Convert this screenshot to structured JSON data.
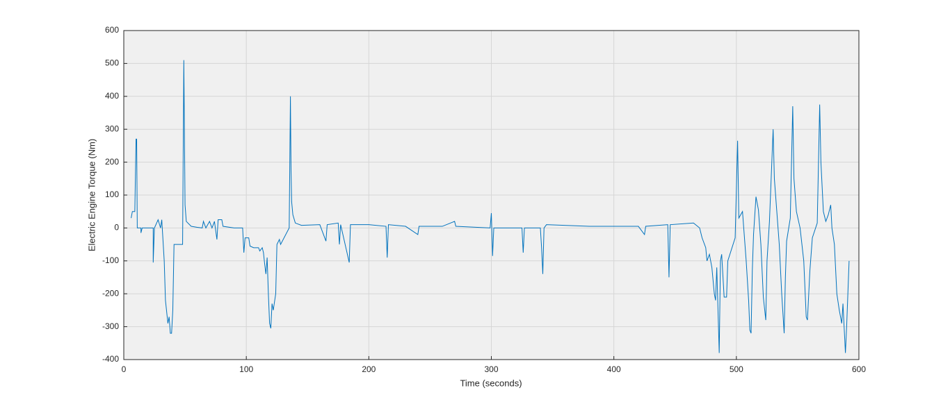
{
  "chart_data": {
    "type": "line",
    "xlabel": "Time (seconds)",
    "ylabel": "Electric Engine Torque (Nm)",
    "color": "#0072bd",
    "xlim": [
      0,
      600
    ],
    "xticks": [
      0,
      100,
      200,
      300,
      400,
      500,
      600
    ],
    "ylim": [
      -400,
      600
    ],
    "yticks": [
      -400,
      -300,
      -200,
      -100,
      0,
      100,
      200,
      300,
      400,
      500,
      600
    ],
    "grid": true,
    "x": [
      6,
      7,
      9,
      10,
      10.5,
      11,
      14,
      14,
      15,
      24,
      24,
      25,
      28,
      30,
      31,
      33,
      34,
      36,
      37,
      38,
      39,
      40,
      41,
      48,
      49,
      50,
      51,
      55,
      60,
      64,
      65,
      67,
      70,
      72,
      74,
      76,
      77,
      80,
      81,
      90,
      97,
      98,
      99,
      102,
      103,
      106,
      110,
      111,
      113,
      114,
      115,
      116,
      117,
      118,
      119,
      120,
      121,
      122,
      124,
      125,
      127,
      128,
      135,
      136,
      136.5,
      137,
      138,
      140,
      145,
      160,
      165,
      166,
      175,
      176,
      177,
      184,
      185,
      200,
      214,
      215,
      216,
      230,
      240,
      241,
      260,
      270,
      271,
      299,
      300,
      301,
      302,
      325,
      326,
      327,
      340,
      341,
      342,
      343,
      345,
      380,
      420,
      425,
      426,
      444,
      445,
      446,
      465,
      470,
      472,
      475,
      476,
      478,
      480,
      482,
      483,
      484,
      485,
      486,
      487,
      488,
      490,
      492,
      493,
      499,
      501,
      502,
      505,
      508,
      510,
      511,
      512,
      513,
      514,
      516,
      518,
      520,
      522,
      524,
      525,
      527,
      530,
      531,
      533,
      535,
      537,
      539,
      540,
      541,
      544,
      546,
      547,
      549,
      552,
      555,
      557,
      558,
      560,
      562,
      566,
      568,
      569,
      571,
      573,
      575,
      577,
      578,
      580,
      582,
      584,
      586,
      587,
      589,
      590,
      591,
      592
    ],
    "values": [
      30,
      50,
      50,
      270,
      270,
      0,
      0,
      -15,
      0,
      0,
      -105,
      0,
      25,
      0,
      25,
      -100,
      -220,
      -290,
      -270,
      -320,
      -320,
      -250,
      -50,
      -50,
      510,
      70,
      20,
      5,
      2,
      0,
      20,
      0,
      20,
      0,
      20,
      -35,
      25,
      25,
      5,
      0,
      0,
      -75,
      -30,
      -30,
      -55,
      -60,
      -60,
      -70,
      -60,
      -75,
      -110,
      -140,
      -90,
      -200,
      -290,
      -305,
      -230,
      -250,
      -200,
      -50,
      -35,
      -50,
      0,
      400,
      175,
      80,
      40,
      15,
      8,
      10,
      -40,
      10,
      15,
      -50,
      10,
      -105,
      10,
      10,
      5,
      -90,
      10,
      5,
      -20,
      5,
      5,
      20,
      5,
      0,
      45,
      -85,
      0,
      0,
      -75,
      0,
      0,
      -60,
      -140,
      0,
      10,
      5,
      5,
      -20,
      5,
      10,
      -150,
      10,
      15,
      0,
      -30,
      -60,
      -100,
      -80,
      -120,
      -200,
      -220,
      -120,
      -250,
      -380,
      -100,
      -80,
      -210,
      -210,
      -100,
      -30,
      265,
      30,
      50,
      -100,
      -220,
      -310,
      -320,
      -130,
      -20,
      95,
      55,
      -50,
      -210,
      -280,
      -100,
      20,
      300,
      150,
      50,
      -50,
      -200,
      -320,
      -150,
      -40,
      30,
      370,
      150,
      50,
      0,
      -100,
      -270,
      -280,
      -130,
      -30,
      15,
      375,
      200,
      50,
      20,
      40,
      70,
      0,
      -50,
      -200,
      -250,
      -290,
      -230,
      -380,
      -300,
      -200,
      -100
    ]
  }
}
